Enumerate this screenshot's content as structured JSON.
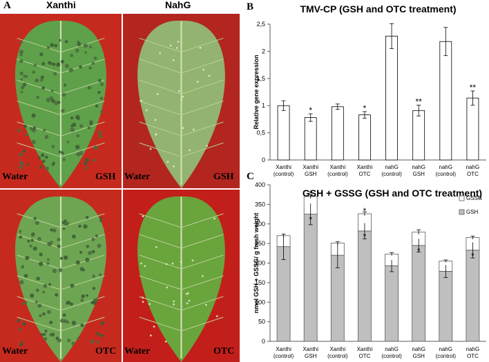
{
  "panel_a": {
    "letter": "A",
    "columns": [
      "Xanthi",
      "NahG"
    ],
    "photos": [
      {
        "name": "photo-xanthi-gsh",
        "left_label": "Water",
        "right_label": "GSH",
        "bg": "#c62a1f",
        "leaf": "#5fa04a",
        "spots": true
      },
      {
        "name": "photo-nahg-gsh",
        "left_label": "Water",
        "right_label": "GSH",
        "bg": "#b2261f",
        "leaf": "#93b370",
        "spots": false
      },
      {
        "name": "photo-xanthi-otc",
        "left_label": "Water",
        "right_label": "OTC",
        "bg": "#c62a1f",
        "leaf": "#6ea553",
        "spots": true
      },
      {
        "name": "photo-nahg-otc",
        "left_label": "Water",
        "right_label": "OTC",
        "bg": "#c21f1a",
        "leaf": "#69a43c",
        "spots": false
      }
    ]
  },
  "panel_b": {
    "letter": "B",
    "chart_data": {
      "type": "bar",
      "title": "TMV-CP (GSH and OTC treatment)",
      "ylabel": "Relative gene expression",
      "ylim": [
        0,
        2.5
      ],
      "yticks": [
        "0",
        "0,5",
        "1",
        "1,5",
        "2",
        "2,5"
      ],
      "ytick_values": [
        0,
        0.5,
        1,
        1.5,
        2,
        2.5
      ],
      "categories": [
        [
          "Xanthi",
          "(control)"
        ],
        [
          "Xanthi",
          "GSH"
        ],
        [
          "Xanthi",
          "(control)"
        ],
        [
          "Xanthi",
          "OTC"
        ],
        [
          "nahG",
          "(control)"
        ],
        [
          "nahG",
          "GSH"
        ],
        [
          "nahG",
          "(control)"
        ],
        [
          "nahG",
          "OTC"
        ]
      ],
      "values": [
        1.0,
        0.78,
        0.98,
        0.83,
        2.28,
        0.91,
        2.18,
        1.14
      ],
      "errors": [
        0.09,
        0.07,
        0.05,
        0.06,
        0.23,
        0.1,
        0.26,
        0.13
      ],
      "significance": [
        "",
        "*",
        "",
        "*",
        "",
        "**",
        "",
        "**"
      ]
    }
  },
  "panel_c": {
    "letter": "C",
    "chart_data": {
      "type": "bar",
      "stacked": true,
      "title": "GSH + GSSG (GSH and OTC treatment)",
      "ylabel": "nmol GSH + GSSG/ g fresh weight",
      "ylim": [
        0,
        400
      ],
      "yticks": [
        "0",
        "50",
        "100",
        "150",
        "200",
        "250",
        "300",
        "350",
        "400"
      ],
      "ytick_values": [
        0,
        50,
        100,
        150,
        200,
        250,
        300,
        350,
        400
      ],
      "categories": [
        [
          "Xanthi",
          "(control)"
        ],
        [
          "Xanthi",
          "GSH"
        ],
        [
          "Xanthi",
          "(control)"
        ],
        [
          "Xanthi",
          "OTC"
        ],
        [
          "nahG",
          "(control)"
        ],
        [
          "nahG",
          "GSH"
        ],
        [
          "nahG",
          "(control)"
        ],
        [
          "nahG",
          "OTC"
        ]
      ],
      "series": [
        {
          "name": "GSH",
          "color": "#bfbfbf",
          "values": [
            242,
            325,
            220,
            282,
            193,
            245,
            179,
            233
          ],
          "errors": [
            33,
            27,
            32,
            20,
            15,
            17,
            16,
            20
          ],
          "significance": [
            "",
            "*",
            "",
            "*",
            "",
            "*",
            "",
            "*"
          ]
        },
        {
          "name": "GSSG",
          "color": "#ffffff",
          "values": [
            28,
            45,
            31,
            44,
            30,
            34,
            26,
            32
          ],
          "errors": [
            4,
            5,
            4,
            5,
            4,
            6,
            3,
            4
          ],
          "significance": [
            "",
            "*",
            "",
            "*",
            "",
            "",
            "",
            ""
          ]
        }
      ],
      "legend": [
        "GSSG",
        "GSH"
      ],
      "legend_position": "top-right"
    }
  }
}
